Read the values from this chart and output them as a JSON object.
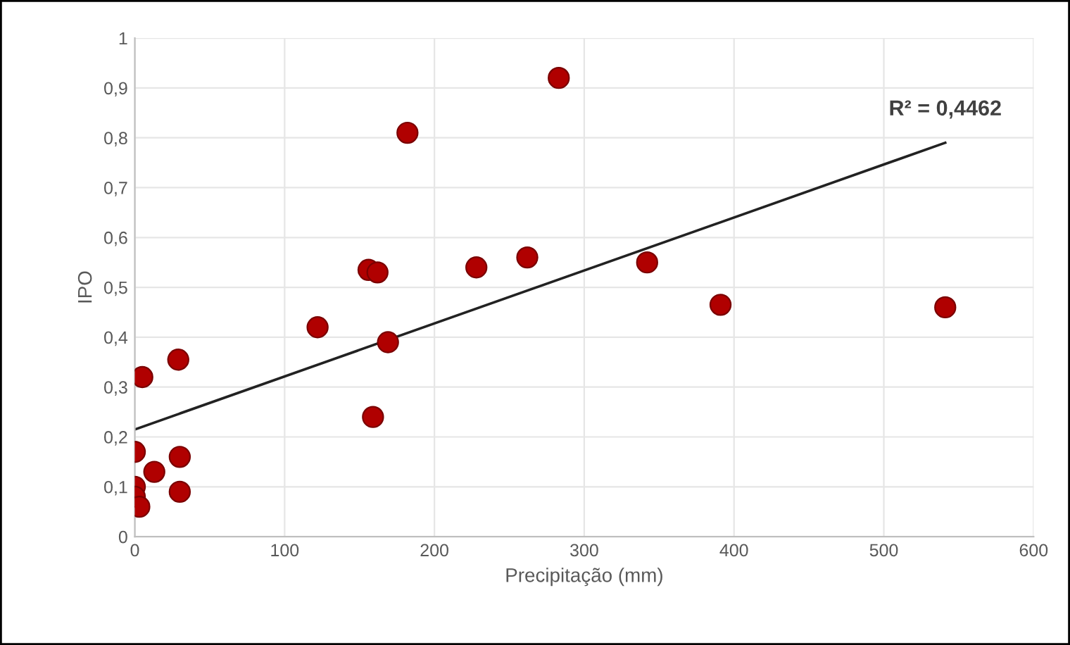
{
  "chart_data": {
    "type": "scatter",
    "xlabel": "Precipitação (mm)",
    "ylabel": "IPO",
    "xlim": [
      0,
      600
    ],
    "xticks": [
      0,
      100,
      200,
      300,
      400,
      500,
      600
    ],
    "ylim": [
      0,
      1
    ],
    "yticks": [
      {
        "value": 0,
        "label": "0"
      },
      {
        "value": 0.1,
        "label": "0,1"
      },
      {
        "value": 0.2,
        "label": "0,2"
      },
      {
        "value": 0.3,
        "label": "0,3"
      },
      {
        "value": 0.4,
        "label": "0,4"
      },
      {
        "value": 0.5,
        "label": "0,5"
      },
      {
        "value": 0.6,
        "label": "0,6"
      },
      {
        "value": 0.7,
        "label": "0,7"
      },
      {
        "value": 0.8,
        "label": "0,8"
      },
      {
        "value": 0.9,
        "label": "0,9"
      },
      {
        "value": 1,
        "label": "1"
      }
    ],
    "grid": true,
    "series": [
      {
        "marker": "circle",
        "color": "#b00000",
        "x": [
          5,
          29,
          0,
          13,
          30,
          0,
          0,
          3,
          30,
          122,
          156,
          162,
          159,
          169,
          182,
          228,
          262,
          283,
          342,
          391,
          541
        ],
        "values": [
          0.32,
          0.355,
          0.17,
          0.13,
          0.16,
          0.1,
          0.08,
          0.06,
          0.09,
          0.42,
          0.535,
          0.53,
          0.24,
          0.39,
          0.81,
          0.54,
          0.56,
          0.92,
          0.55,
          0.465,
          0.46
        ]
      },
      {
        "type": "line",
        "color": "#222222",
        "x": [
          0,
          541
        ],
        "values": [
          0.215,
          0.79
        ]
      }
    ],
    "annotations": [
      {
        "text": "R² = 0,4462",
        "x": 541,
        "y": 0.79
      }
    ]
  }
}
